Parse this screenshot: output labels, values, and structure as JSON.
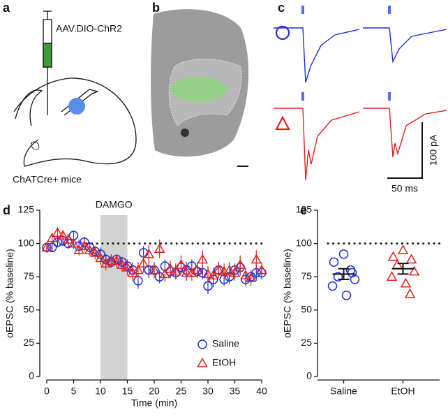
{
  "panel_labels": [
    "a",
    "b",
    "c",
    "d",
    "e"
  ],
  "schematic": {
    "virus_label": "AAV.DIO-ChR2",
    "mouse_label": "ChATCre+ mice"
  },
  "traces": {
    "scale_y": "100 pA",
    "scale_x": "50 ms"
  },
  "chart_data": [
    {
      "type": "scatter",
      "xlabel": "Time (min)",
      "ylabel": "oEPSC (% baseline)",
      "xlim": [
        0,
        40
      ],
      "xticks": [
        0,
        5,
        10,
        15,
        20,
        25,
        30,
        35,
        40
      ],
      "ylim": [
        0,
        125
      ],
      "yticks": [
        0,
        25,
        50,
        75,
        100,
        125
      ],
      "reference_line": 100,
      "shade": {
        "label": "DAMGO",
        "x": [
          10,
          15
        ]
      },
      "legend": "lower right",
      "x": [
        0,
        1,
        2,
        3,
        4,
        5,
        6,
        7,
        8,
        9,
        10,
        11,
        12,
        13,
        14,
        15,
        16,
        17,
        18,
        19,
        20,
        21,
        22,
        23,
        24,
        25,
        26,
        27,
        28,
        29,
        30,
        31,
        32,
        33,
        34,
        35,
        36,
        37,
        38,
        39,
        40
      ],
      "series": [
        {
          "name": "Saline",
          "color": "#1f2fd8",
          "marker": "circle",
          "values": [
            97,
            97,
            101,
            102,
            100,
            106,
            98,
            101,
            97,
            94,
            92,
            88,
            86,
            88,
            86,
            83,
            80,
            72,
            93,
            80,
            80,
            75,
            83,
            79,
            78,
            82,
            80,
            83,
            79,
            78,
            68,
            73,
            80,
            73,
            75,
            80,
            82,
            73,
            75,
            78,
            78
          ],
          "errors": [
            3,
            3,
            4,
            4,
            4,
            3,
            5,
            4,
            4,
            4,
            5,
            4,
            4,
            4,
            4,
            5,
            6,
            6,
            5,
            6,
            5,
            5,
            5,
            5,
            5,
            5,
            6,
            5,
            5,
            5,
            6,
            6,
            6,
            5,
            5,
            5,
            6,
            5,
            5,
            6,
            5
          ]
        },
        {
          "name": "EtOH",
          "color": "#e0201c",
          "marker": "triangle",
          "values": [
            97,
            104,
            108,
            106,
            103,
            100,
            95,
            98,
            95,
            93,
            89,
            85,
            87,
            87,
            84,
            82,
            78,
            80,
            85,
            92,
            80,
            96,
            77,
            81,
            79,
            84,
            78,
            78,
            80,
            88,
            77,
            76,
            80,
            79,
            80,
            78,
            84,
            76,
            74,
            88,
            80
          ],
          "errors": [
            4,
            4,
            4,
            4,
            4,
            4,
            4,
            4,
            4,
            5,
            5,
            5,
            5,
            5,
            5,
            6,
            6,
            6,
            7,
            7,
            6,
            7,
            6,
            6,
            6,
            7,
            6,
            6,
            6,
            7,
            6,
            6,
            6,
            6,
            6,
            6,
            7,
            6,
            6,
            7,
            6
          ]
        }
      ]
    },
    {
      "type": "dot",
      "ylabel": "oEPSC (% baseline)",
      "ylim": [
        0,
        125
      ],
      "yticks": [
        0,
        25,
        50,
        75,
        100,
        125
      ],
      "reference_line": 100,
      "groups": [
        {
          "name": "Saline",
          "color": "#1f2fd8",
          "marker": "circle",
          "values": [
            92,
            86,
            78,
            75,
            73,
            68,
            61,
            80
          ],
          "mean": 77,
          "error": 4
        },
        {
          "name": "EtOH",
          "color": "#e0201c",
          "marker": "triangle",
          "values": [
            95,
            90,
            88,
            84,
            79,
            75,
            70,
            62
          ],
          "mean": 81,
          "error": 4
        }
      ]
    }
  ]
}
